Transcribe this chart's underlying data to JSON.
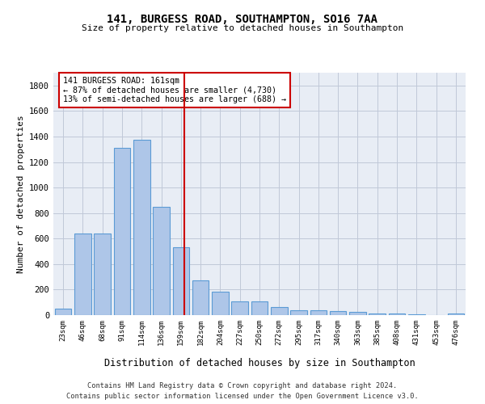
{
  "title": "141, BURGESS ROAD, SOUTHAMPTON, SO16 7AA",
  "subtitle": "Size of property relative to detached houses in Southampton",
  "xlabel": "Distribution of detached houses by size in Southampton",
  "ylabel": "Number of detached properties",
  "bar_color": "#aec6e8",
  "bar_edge_color": "#5b9bd5",
  "categories": [
    "23sqm",
    "46sqm",
    "68sqm",
    "91sqm",
    "114sqm",
    "136sqm",
    "159sqm",
    "182sqm",
    "204sqm",
    "227sqm",
    "250sqm",
    "272sqm",
    "295sqm",
    "317sqm",
    "340sqm",
    "363sqm",
    "385sqm",
    "408sqm",
    "431sqm",
    "453sqm",
    "476sqm"
  ],
  "values": [
    50,
    640,
    640,
    1310,
    1375,
    850,
    530,
    275,
    185,
    105,
    105,
    65,
    40,
    40,
    30,
    25,
    15,
    10,
    5,
    2,
    10
  ],
  "vline_x_index": 6.18,
  "vline_color": "#cc0000",
  "annotation_text": "141 BURGESS ROAD: 161sqm\n← 87% of detached houses are smaller (4,730)\n13% of semi-detached houses are larger (688) →",
  "annotation_box_color": "#cc0000",
  "ylim": [
    0,
    1900
  ],
  "yticks": [
    0,
    200,
    400,
    600,
    800,
    1000,
    1200,
    1400,
    1600,
    1800
  ],
  "grid_color": "#c0c8d8",
  "bg_color": "#e8edf5",
  "footer_line1": "Contains HM Land Registry data © Crown copyright and database right 2024.",
  "footer_line2": "Contains public sector information licensed under the Open Government Licence v3.0."
}
